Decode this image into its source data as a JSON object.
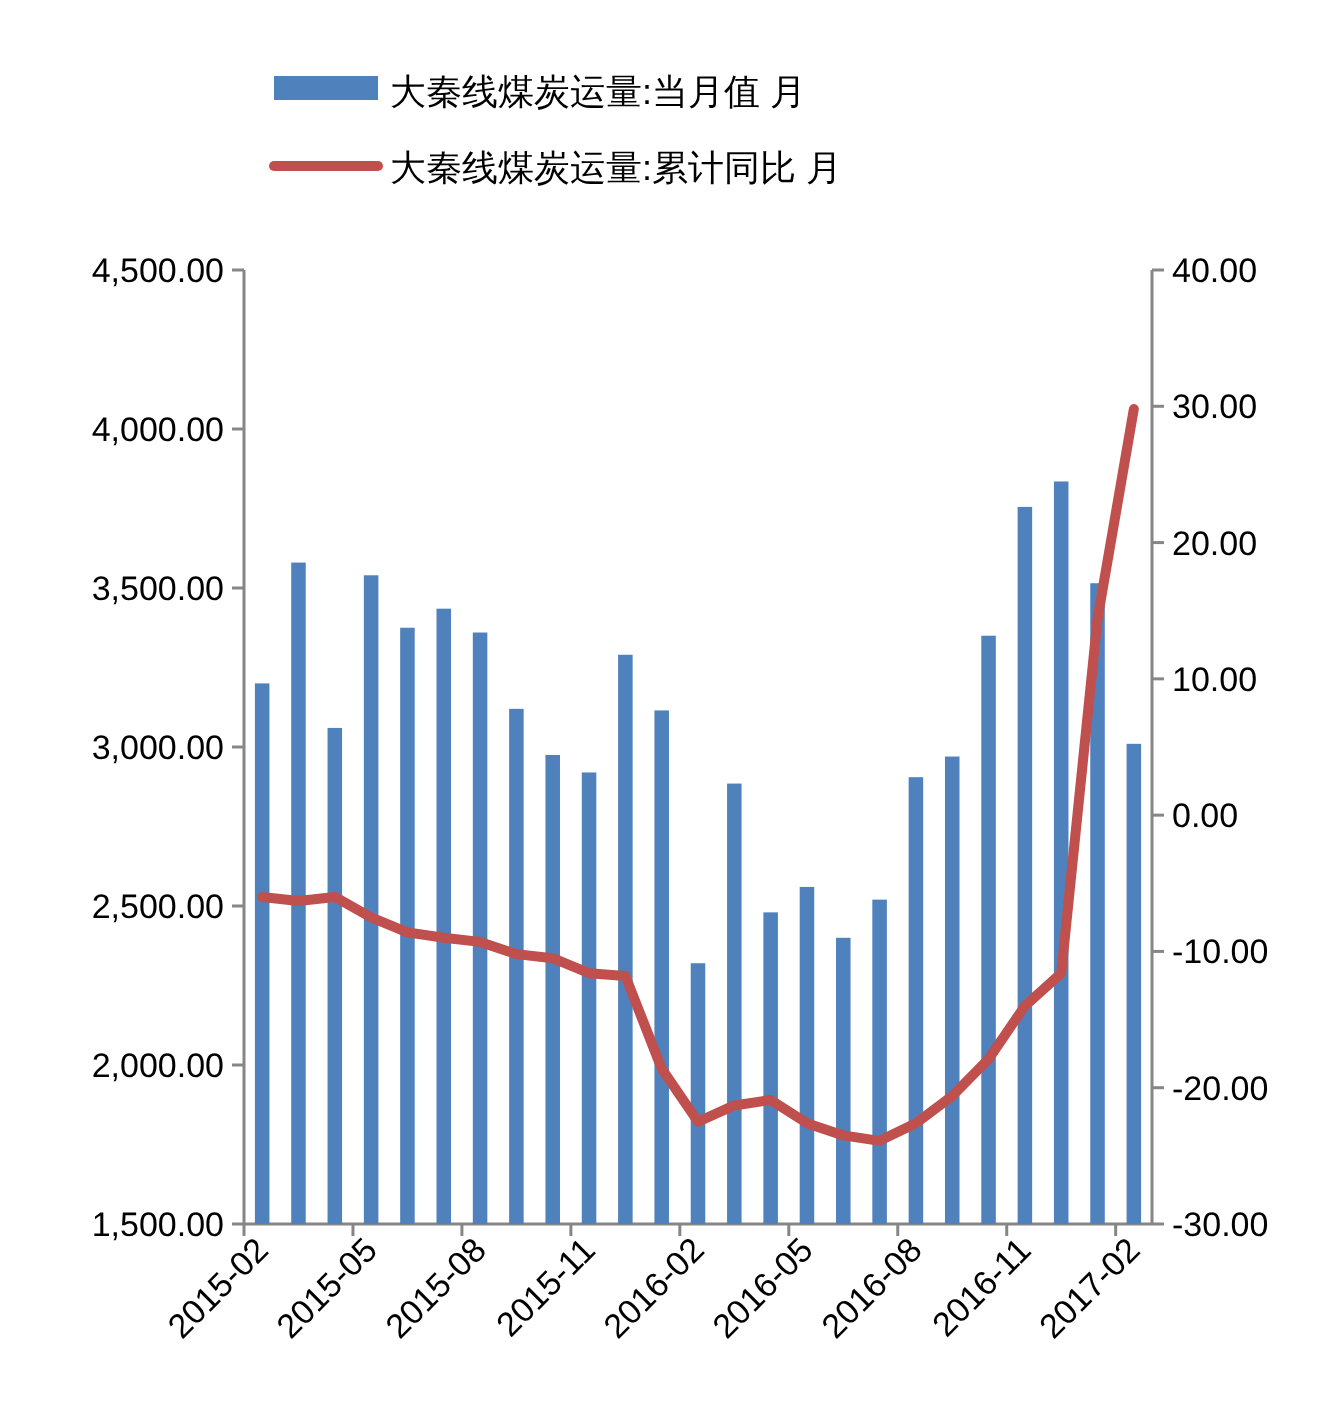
{
  "chart_data": {
    "type": "bar",
    "categories": [
      "2015-02",
      null,
      null,
      "2015-05",
      null,
      null,
      "2015-08",
      null,
      null,
      "2015-11",
      null,
      null,
      "2016-02",
      null,
      null,
      "2016-05",
      null,
      null,
      "2016-08",
      null,
      null,
      "2016-11",
      null,
      null,
      "2017-02"
    ],
    "series": [
      {
        "name": "大秦线煤炭运量:当月值 月",
        "color": "#4f81bd",
        "values": [
          3200,
          3580,
          3060,
          3540,
          3375,
          3435,
          3360,
          3120,
          2975,
          2920,
          3290,
          3115,
          2320,
          2885,
          2480,
          2560,
          2400,
          2520,
          2905,
          2970,
          3350,
          3755,
          3835,
          3515,
          3010
        ]
      },
      {
        "name": "大秦线煤炭运量:累计同比 月",
        "type": "line",
        "axis": "y2",
        "color": "#c0504d",
        "values": [
          -6.0,
          -6.3,
          -6.0,
          -7.5,
          -8.6,
          -9.0,
          -9.3,
          -10.2,
          -10.5,
          -11.6,
          -11.8,
          -18.6,
          -22.5,
          -21.3,
          -20.9,
          -22.6,
          -23.5,
          -23.9,
          -22.6,
          -20.6,
          -17.9,
          -14.0,
          -11.6,
          14.4,
          29.8
        ]
      }
    ],
    "ylim": [
      1500,
      4500
    ],
    "yticks": [
      {
        "value": 1500,
        "label": "1,500.00"
      },
      {
        "value": 2000,
        "label": "2,000.00"
      },
      {
        "value": 2500,
        "label": "2,500.00"
      },
      {
        "value": 3000,
        "label": "3,000.00"
      },
      {
        "value": 3500,
        "label": "3,500.00"
      },
      {
        "value": 4000,
        "label": "4,000.00"
      },
      {
        "value": 4500,
        "label": "4,500.00"
      }
    ],
    "y2lim": [
      -30,
      40
    ],
    "y2ticks": [
      {
        "value": -30,
        "label": "-30.00"
      },
      {
        "value": -20,
        "label": "-20.00"
      },
      {
        "value": -10,
        "label": "-10.00"
      },
      {
        "value": 0,
        "label": "0.00"
      },
      {
        "value": 10,
        "label": "10.00"
      },
      {
        "value": 20,
        "label": "20.00"
      },
      {
        "value": 30,
        "label": "30.00"
      },
      {
        "value": 40,
        "label": "40.00"
      }
    ],
    "legend": "top",
    "grid": false,
    "marker": "none",
    "line_style": "solid"
  }
}
